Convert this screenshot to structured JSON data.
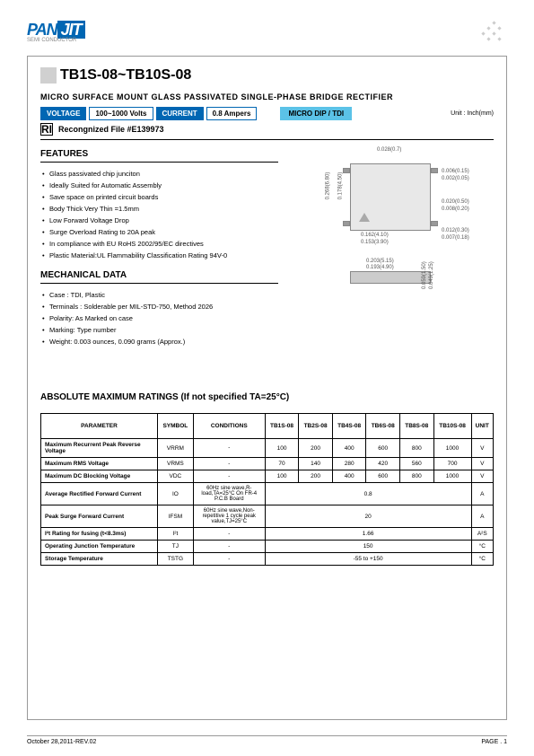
{
  "logo": {
    "pan": "PAN",
    "jit": "JIT",
    "sub": "SEMI\nCONDUCTOR"
  },
  "title": "TB1S-08~TB10S-08",
  "subtitle": "MICRO SURFACE MOUNT GLASS PASSIVATED SINGLE-PHASE BRIDGE RECTIFIER",
  "spec": {
    "voltage_label": "VOLTAGE",
    "voltage_val": "100~1000 Volts",
    "current_label": "CURRENT",
    "current_val": "0.8 Ampers",
    "package_label": "MICRO DIP / TDI",
    "unit": "Unit : Inch(mm)"
  },
  "ul": {
    "logo": "UL",
    "text": "Recongnized File #E139973"
  },
  "features": {
    "heading": "FEATURES",
    "items": [
      "Glass passivated chip junciton",
      "Ideally Suited for Automatic Assembly",
      "Save space on printed circuit boards",
      "Body Thick Very Thin =1.5mm",
      "Low Forward Voltage Drop",
      "Surge Overload Rating to 20A peak",
      "In compliance with EU RoHS 2002/95/EC directives",
      "Plastic Material:UL Flammability Classification Rating 94V-0"
    ]
  },
  "mech": {
    "heading": "MECHANICAL DATA",
    "items": [
      "Case : TDI, Plastic",
      "Terminals : Solderable per MIL-STD-750, Method 2026",
      "Polarity: As Marked on case",
      "Marking: Type number",
      "Weight: 0.003 ounces, 0.090 grams (Approx.)"
    ]
  },
  "diagram": {
    "dims": {
      "d1": "0.028(0.7)",
      "d2": "0.006(0.15)",
      "d3": "0.002(0.05)",
      "d4": "0.268(6.80)",
      "d5": "0.178(4.50)",
      "d6": "0.020(0.50)",
      "d7": "0.008(0.20)",
      "d8": "0.162(4.10)",
      "d9": "0.153(3.90)",
      "d10": "0.012(0.30)",
      "d11": "0.007(0.18)",
      "d12": "0.203(5.15)",
      "d13": "0.193(4.90)",
      "d14": "0.059(1.50)",
      "d15": "0.049(1.25)"
    }
  },
  "ratings": {
    "heading": "ABSOLUTE MAXIMUM RATINGS (If not specified TA=25°C)",
    "columns": [
      "PARAMETER",
      "SYMBOL",
      "CONDITIONS",
      "TB1S-08",
      "TB2S-08",
      "TB4S-08",
      "TB6S-08",
      "TB8S-08",
      "TB10S-08",
      "UNIT"
    ],
    "rows": [
      {
        "param": "Maximum Recurrent Peak Reverse Voltage",
        "sym": "VRRM",
        "cond": "-",
        "vals": [
          "100",
          "200",
          "400",
          "600",
          "800",
          "1000"
        ],
        "unit": "V"
      },
      {
        "param": "Maximum RMS Voltage",
        "sym": "VRMS",
        "cond": "-",
        "vals": [
          "70",
          "140",
          "280",
          "420",
          "560",
          "700"
        ],
        "unit": "V"
      },
      {
        "param": "Maximum DC Blocking Voltage",
        "sym": "VDC",
        "cond": "-",
        "vals": [
          "100",
          "200",
          "400",
          "600",
          "800",
          "1000"
        ],
        "unit": "V"
      },
      {
        "param": "Average Rectified Forward Current",
        "sym": "IO",
        "cond": "60Hz sine wave,R-load,TA=25°C On FR-4 P.C.B Board",
        "span": "0.8",
        "unit": "A"
      },
      {
        "param": "Peak Surge Forward Current",
        "sym": "IFSM",
        "cond": "60Hz sine wave,Non-repetitive 1 cycle peak value,TJ=25°C",
        "span": "20",
        "unit": "A"
      },
      {
        "param": "I²t Rating for fusing (t<8.3ms)",
        "sym": "I²t",
        "cond": "-",
        "span": "1.66",
        "unit": "A²S"
      },
      {
        "param": "Operating Junction Temperature",
        "sym": "TJ",
        "cond": "-",
        "span": "150",
        "unit": "°C"
      },
      {
        "param": "Storage Temperature",
        "sym": "TSTG",
        "cond": "-",
        "span": "-55 to +150",
        "unit": "°C"
      }
    ]
  },
  "footer": {
    "left": "October 28,2011-REV.02",
    "right": "PAGE .  1"
  }
}
